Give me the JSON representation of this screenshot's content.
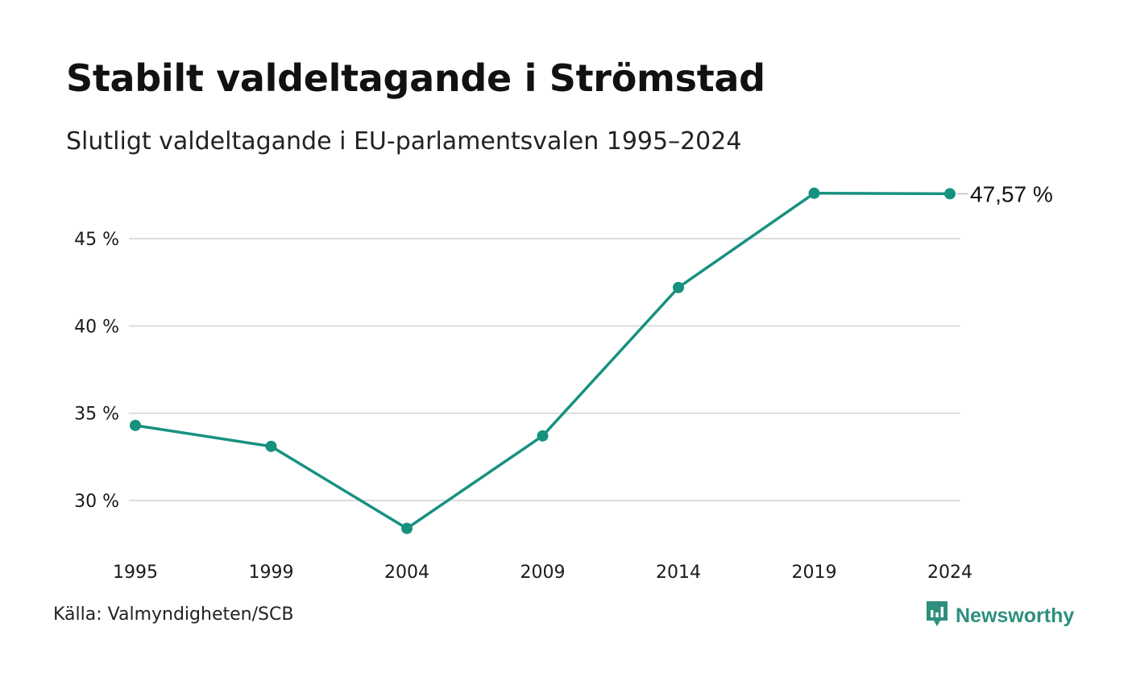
{
  "title": "Stabilt valdeltagande i Strömstad",
  "subtitle": "Slutligt valdeltagande i EU-parlamentsvalen 1995–2024",
  "source": "Källa: Valmyndigheten/SCB",
  "brand": {
    "name": "Newsworthy",
    "icon": "newsworthy-logo-icon"
  },
  "colors": {
    "line": "#17917f",
    "grid": "#dcdcdc",
    "brand": "#2e8f7e",
    "text": "#111111"
  },
  "chart_data": {
    "type": "line",
    "x": [
      "1995",
      "1999",
      "2004",
      "2009",
      "2014",
      "2019",
      "2024"
    ],
    "series": [
      {
        "values": [
          34.3,
          33.1,
          28.4,
          33.7,
          42.2,
          47.6,
          47.57
        ]
      }
    ],
    "yticks": [
      30,
      35,
      40,
      45
    ],
    "ytick_labels": [
      "30 %",
      "35 %",
      "40 %",
      "45 %"
    ],
    "ylim": [
      27.4,
      48.6
    ],
    "end_label": "47,57 %",
    "grid": "horizontal",
    "legend": "none"
  }
}
